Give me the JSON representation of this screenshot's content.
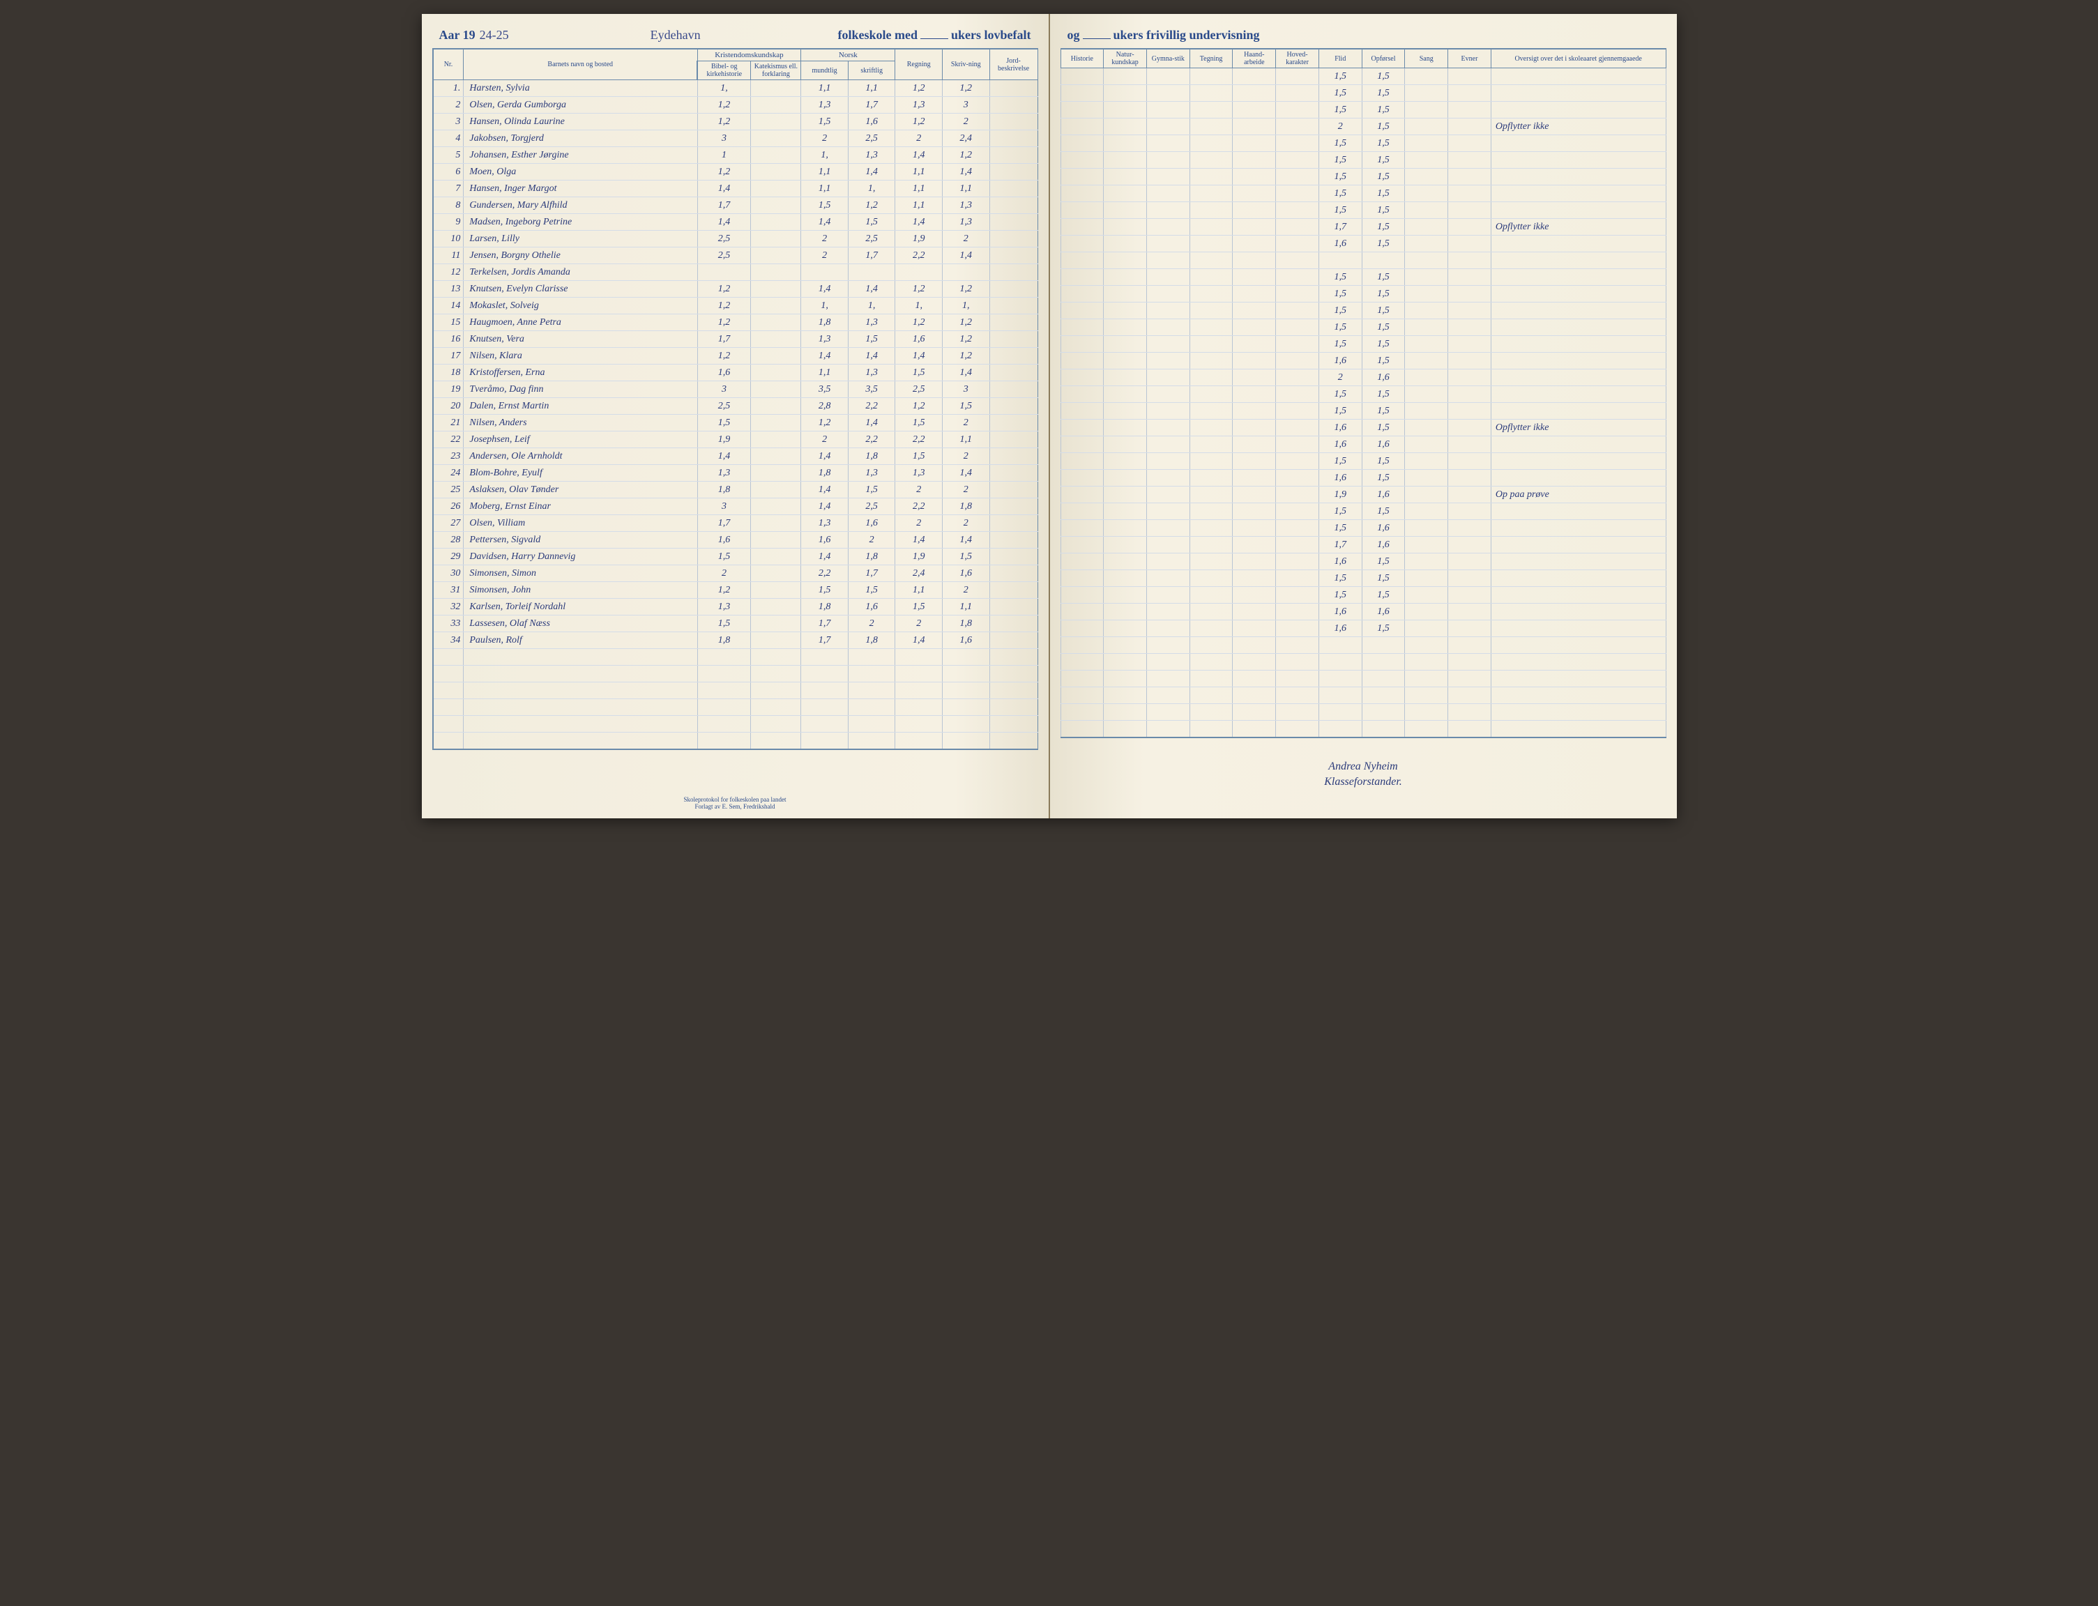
{
  "header": {
    "year_label": "Aar 19",
    "year_value": "24-25",
    "school_name": "Eydehavn",
    "text_mid": "folkeskole med",
    "text_ukers1": "ukers lovbefalt",
    "text_og": "og",
    "text_ukers2": "ukers frivillig undervisning"
  },
  "columns_left": {
    "nr": "Nr.",
    "name": "Barnets navn og bosted",
    "kristendom": "Kristendomskundskap",
    "bibel": "Bibel- og kirkehistorie",
    "katekismus": "Katekismus ell. forklaring",
    "norsk": "Norsk",
    "mundtlig": "mundtlig",
    "skriftlig": "skriftlig",
    "regning": "Regning",
    "skrivning": "Skriv-ning",
    "jord": "Jord-beskrivelse"
  },
  "columns_right": {
    "historie": "Historie",
    "natur": "Natur-kundskap",
    "gymnastik": "Gymna-stik",
    "tegning": "Tegning",
    "haand": "Haand-arbeide",
    "hoved": "Hoved-karakter",
    "flid": "Flid",
    "opforsel": "Opførsel",
    "sang": "Sang",
    "evner": "Evner",
    "oversigt": "Oversigt over det i skoleaaret gjennemgaaede"
  },
  "rows": [
    {
      "nr": "1.",
      "name": "Harsten, Sylvia",
      "g": [
        "1,",
        "",
        "1,1",
        "1,1",
        "1,2",
        "1,2"
      ],
      "r": [
        "1,5",
        "1,5",
        ""
      ]
    },
    {
      "nr": "2",
      "name": "Olsen, Gerda Gumborga",
      "g": [
        "1,2",
        "",
        "1,3",
        "1,7",
        "1,3",
        "3"
      ],
      "r": [
        "1,5",
        "1,5",
        ""
      ]
    },
    {
      "nr": "3",
      "name": "Hansen, Olinda Laurine",
      "g": [
        "1,2",
        "",
        "1,5",
        "1,6",
        "1,2",
        "2"
      ],
      "r": [
        "1,5",
        "1,5",
        ""
      ]
    },
    {
      "nr": "4",
      "name": "Jakobsen, Torgjerd",
      "g": [
        "3",
        "",
        "2",
        "2,5",
        "2",
        "2,4"
      ],
      "r": [
        "2",
        "1,5",
        "Opflytter ikke"
      ]
    },
    {
      "nr": "5",
      "name": "Johansen, Esther Jørgine",
      "g": [
        "1",
        "",
        "1,",
        "1,3",
        "1,4",
        "1,2"
      ],
      "r": [
        "1,5",
        "1,5",
        ""
      ]
    },
    {
      "nr": "6",
      "name": "Moen, Olga",
      "g": [
        "1,2",
        "",
        "1,1",
        "1,4",
        "1,1",
        "1,4"
      ],
      "r": [
        "1,5",
        "1,5",
        ""
      ]
    },
    {
      "nr": "7",
      "name": "Hansen, Inger Margot",
      "g": [
        "1,4",
        "",
        "1,1",
        "1,",
        "1,1",
        "1,1"
      ],
      "r": [
        "1,5",
        "1,5",
        ""
      ]
    },
    {
      "nr": "8",
      "name": "Gundersen, Mary Alfhild",
      "g": [
        "1,7",
        "",
        "1,5",
        "1,2",
        "1,1",
        "1,3"
      ],
      "r": [
        "1,5",
        "1,5",
        ""
      ]
    },
    {
      "nr": "9",
      "name": "Madsen, Ingeborg Petrine",
      "g": [
        "1,4",
        "",
        "1,4",
        "1,5",
        "1,4",
        "1,3"
      ],
      "r": [
        "1,5",
        "1,5",
        ""
      ]
    },
    {
      "nr": "10",
      "name": "Larsen, Lilly",
      "g": [
        "2,5",
        "",
        "2",
        "2,5",
        "1,9",
        "2"
      ],
      "r": [
        "1,7",
        "1,5",
        "Opflytter ikke"
      ]
    },
    {
      "nr": "11",
      "name": "Jensen, Borgny Othelie",
      "g": [
        "2,5",
        "",
        "2",
        "1,7",
        "2,2",
        "1,4"
      ],
      "r": [
        "1,6",
        "1,5",
        ""
      ]
    },
    {
      "nr": "12",
      "name": "Terkelsen, Jordis Amanda",
      "g": [
        "",
        "",
        "",
        "",
        "",
        ""
      ],
      "r": [
        "",
        "",
        ""
      ]
    },
    {
      "nr": "13",
      "name": "Knutsen, Evelyn Clarisse",
      "g": [
        "1,2",
        "",
        "1,4",
        "1,4",
        "1,2",
        "1,2"
      ],
      "r": [
        "1,5",
        "1,5",
        ""
      ]
    },
    {
      "nr": "14",
      "name": "Mokaslet, Solveig",
      "g": [
        "1,2",
        "",
        "1,",
        "1,",
        "1,",
        "1,"
      ],
      "r": [
        "1,5",
        "1,5",
        ""
      ]
    },
    {
      "nr": "15",
      "name": "Haugmoen, Anne Petra",
      "g": [
        "1,2",
        "",
        "1,8",
        "1,3",
        "1,2",
        "1,2"
      ],
      "r": [
        "1,5",
        "1,5",
        ""
      ]
    },
    {
      "nr": "16",
      "name": "Knutsen, Vera",
      "g": [
        "1,7",
        "",
        "1,3",
        "1,5",
        "1,6",
        "1,2"
      ],
      "r": [
        "1,5",
        "1,5",
        ""
      ]
    },
    {
      "nr": "17",
      "name": "Nilsen, Klara",
      "g": [
        "1,2",
        "",
        "1,4",
        "1,4",
        "1,4",
        "1,2"
      ],
      "r": [
        "1,5",
        "1,5",
        ""
      ]
    },
    {
      "nr": "18",
      "name": "Kristoffersen, Erna",
      "g": [
        "1,6",
        "",
        "1,1",
        "1,3",
        "1,5",
        "1,4"
      ],
      "r": [
        "1,6",
        "1,5",
        ""
      ]
    },
    {
      "nr": "19",
      "name": "Tveråmo, Dag finn",
      "g": [
        "3",
        "",
        "3,5",
        "3,5",
        "2,5",
        "3"
      ],
      "r": [
        "2",
        "1,6",
        ""
      ]
    },
    {
      "nr": "20",
      "name": "Dalen, Ernst Martin",
      "g": [
        "2,5",
        "",
        "2,8",
        "2,2",
        "1,2",
        "1,5"
      ],
      "r": [
        "1,5",
        "1,5",
        ""
      ]
    },
    {
      "nr": "21",
      "name": "Nilsen, Anders",
      "g": [
        "1,5",
        "",
        "1,2",
        "1,4",
        "1,5",
        "2"
      ],
      "r": [
        "1,5",
        "1,5",
        ""
      ]
    },
    {
      "nr": "22",
      "name": "Josephsen, Leif",
      "g": [
        "1,9",
        "",
        "2",
        "2,2",
        "2,2",
        "1,1"
      ],
      "r": [
        "1,6",
        "1,5",
        "Opflytter ikke"
      ]
    },
    {
      "nr": "23",
      "name": "Andersen, Ole Arnholdt",
      "g": [
        "1,4",
        "",
        "1,4",
        "1,8",
        "1,5",
        "2"
      ],
      "r": [
        "1,6",
        "1,6",
        ""
      ]
    },
    {
      "nr": "24",
      "name": "Blom-Bohre, Eyulf",
      "g": [
        "1,3",
        "",
        "1,8",
        "1,3",
        "1,3",
        "1,4"
      ],
      "r": [
        "1,5",
        "1,5",
        ""
      ]
    },
    {
      "nr": "25",
      "name": "Aslaksen, Olav Tønder",
      "g": [
        "1,8",
        "",
        "1,4",
        "1,5",
        "2",
        "2"
      ],
      "r": [
        "1,6",
        "1,5",
        ""
      ]
    },
    {
      "nr": "26",
      "name": "Moberg, Ernst Einar",
      "g": [
        "3",
        "",
        "1,4",
        "2,5",
        "2,2",
        "1,8"
      ],
      "r": [
        "1,9",
        "1,6",
        "Op  paa  prøve"
      ]
    },
    {
      "nr": "27",
      "name": "Olsen, Villiam",
      "g": [
        "1,7",
        "",
        "1,3",
        "1,6",
        "2",
        "2"
      ],
      "r": [
        "1,5",
        "1,5",
        ""
      ]
    },
    {
      "nr": "28",
      "name": "Pettersen, Sigvald",
      "g": [
        "1,6",
        "",
        "1,6",
        "2",
        "1,4",
        "1,4"
      ],
      "r": [
        "1,5",
        "1,6",
        ""
      ]
    },
    {
      "nr": "29",
      "name": "Davidsen, Harry Dannevig",
      "g": [
        "1,5",
        "",
        "1,4",
        "1,8",
        "1,9",
        "1,5"
      ],
      "r": [
        "1,7",
        "1,6",
        ""
      ]
    },
    {
      "nr": "30",
      "name": "Simonsen, Simon",
      "g": [
        "2",
        "",
        "2,2",
        "1,7",
        "2,4",
        "1,6"
      ],
      "r": [
        "1,6",
        "1,5",
        ""
      ]
    },
    {
      "nr": "31",
      "name": "Simonsen, John",
      "g": [
        "1,2",
        "",
        "1,5",
        "1,5",
        "1,1",
        "2"
      ],
      "r": [
        "1,5",
        "1,5",
        ""
      ]
    },
    {
      "nr": "32",
      "name": "Karlsen, Torleif Nordahl",
      "g": [
        "1,3",
        "",
        "1,8",
        "1,6",
        "1,5",
        "1,1"
      ],
      "r": [
        "1,5",
        "1,5",
        ""
      ]
    },
    {
      "nr": "33",
      "name": "Lassesen, Olaf Næss",
      "g": [
        "1,5",
        "",
        "1,7",
        "2",
        "2",
        "1,8"
      ],
      "r": [
        "1,6",
        "1,6",
        ""
      ]
    },
    {
      "nr": "34",
      "name": "Paulsen, Rolf",
      "g": [
        "1,8",
        "",
        "1,7",
        "1,8",
        "1,4",
        "1,6"
      ],
      "r": [
        "1,6",
        "1,5",
        ""
      ]
    }
  ],
  "signature": {
    "name": "Andrea Nyheim",
    "title": "Klasseforstander."
  },
  "footer": {
    "line1": "Skoleprotokol for folkeskolen paa landet",
    "line2": "Forlagt av E. Sem, Fredrikshald"
  },
  "style": {
    "ink_color": "#2a3a7a",
    "printed_color": "#2a4a8a",
    "rule_color": "#6a8aaa",
    "paper_color": "#f4efe0"
  }
}
